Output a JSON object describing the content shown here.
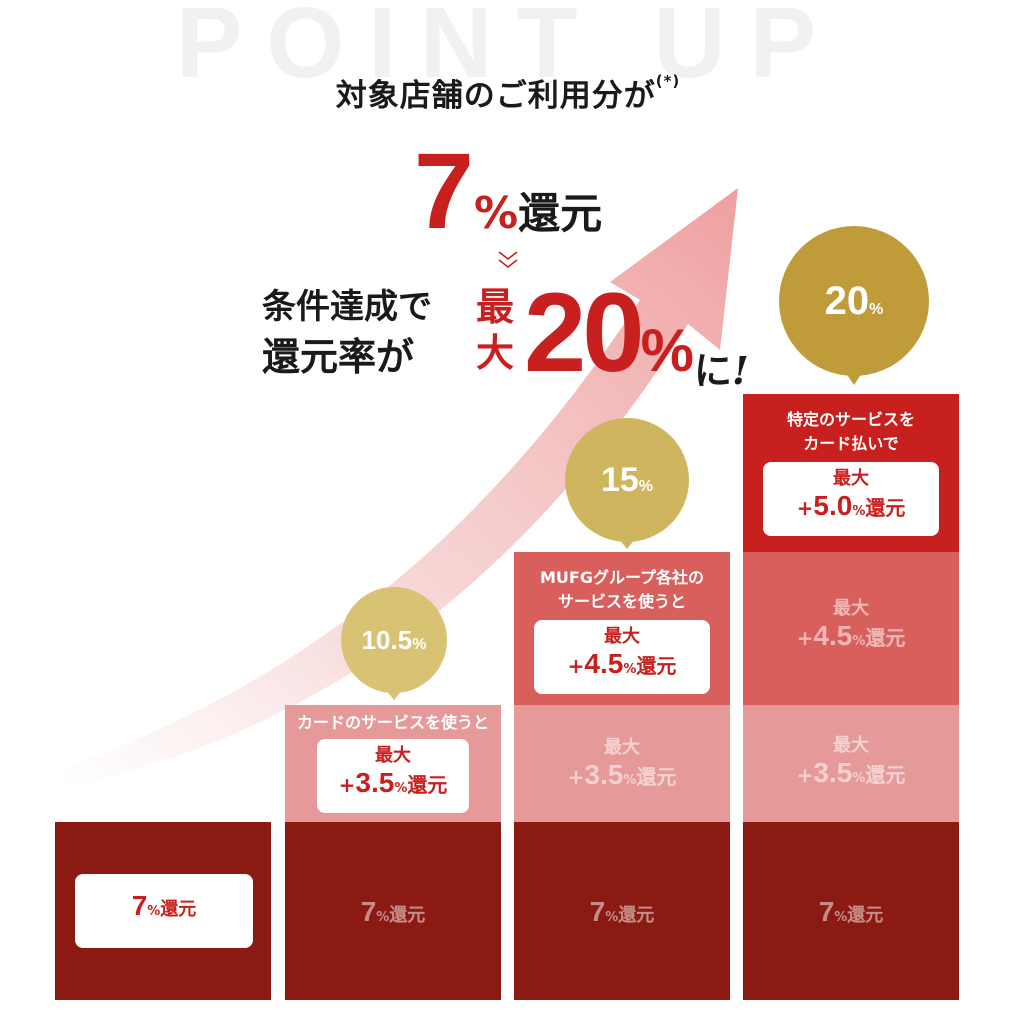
{
  "watermark": "POINT UP",
  "headline": {
    "text": "対象店舗のご利用分が",
    "note": "(*)"
  },
  "base_offer": {
    "number": "7",
    "percent": "%",
    "suffix": "還元"
  },
  "condition": {
    "line1": "条件達成で",
    "line2": "還元率が",
    "max_chars": [
      "最",
      "大"
    ],
    "max_value": "20",
    "percent": "%",
    "suffix": "に",
    "exclaim": "!"
  },
  "columns": [
    {
      "bubble": {
        "value": "",
        "unit": ""
      },
      "base_label": {
        "num": "7",
        "pct": "%",
        "txt": "還元"
      }
    },
    {
      "bubble": {
        "value": "10.5",
        "unit": "%"
      },
      "description": [
        "カードのサービスを使うと"
      ],
      "card": {
        "title": "最大",
        "sign": "+",
        "num": "3.5",
        "pct": "%",
        "txt": "還元"
      },
      "base_label": {
        "num": "7",
        "pct": "%",
        "txt": "還元"
      }
    },
    {
      "bubble": {
        "value": "15",
        "unit": "%"
      },
      "description": [
        "MUFGグループ各社の",
        "サービスを使うと"
      ],
      "card": {
        "title": "最大",
        "sign": "+",
        "num": "4.5",
        "pct": "%",
        "txt": "還元"
      },
      "ghost1": {
        "title": "最大",
        "sign": "+",
        "num": "3.5",
        "pct": "%",
        "txt": "還元"
      },
      "base_label": {
        "num": "7",
        "pct": "%",
        "txt": "還元"
      }
    },
    {
      "bubble": {
        "value": "20",
        "unit": "%"
      },
      "description": [
        "特定のサービスを",
        "カード払いで"
      ],
      "card": {
        "title": "最大",
        "sign": "+",
        "num": "5.0",
        "pct": "%",
        "txt": "還元"
      },
      "ghost2": {
        "title": "最大",
        "sign": "+",
        "num": "4.5",
        "pct": "%",
        "txt": "還元"
      },
      "ghost1": {
        "title": "最大",
        "sign": "+",
        "num": "3.5",
        "pct": "%",
        "txt": "還元"
      },
      "base_label": {
        "num": "7",
        "pct": "%",
        "txt": "還元"
      }
    }
  ],
  "colors": {
    "accent_red": "#c8201e",
    "dark_red": "#8b1a13",
    "mid_red": "#d95f5c",
    "pale_red": "#e59999",
    "bubble_pale": "#d8c274",
    "bubble_mid": "#cfb55e",
    "bubble_gold": "#bf9b3a"
  }
}
